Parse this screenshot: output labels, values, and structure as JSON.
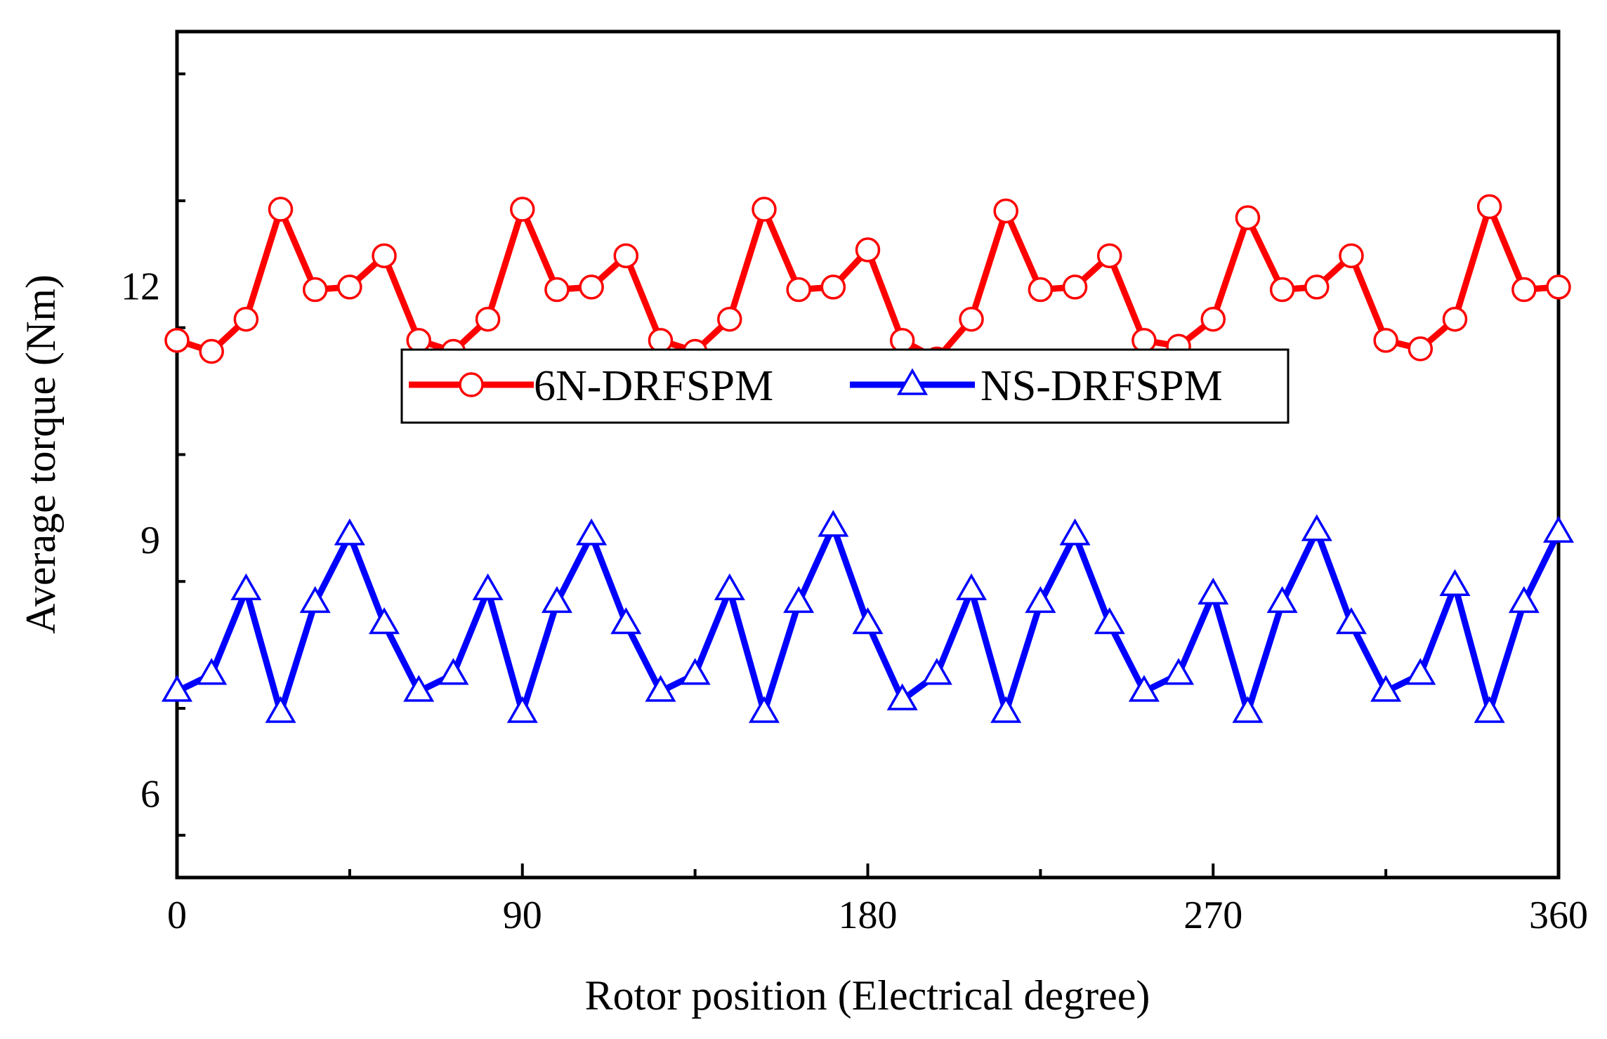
{
  "chart_data": {
    "type": "line",
    "title": "",
    "xlabel": "Rotor position (Electrical degree)",
    "ylabel": "Average torque (Nm)",
    "xlim": [
      0,
      360
    ],
    "ylim": [
      5,
      15
    ],
    "xticks": [
      0,
      90,
      180,
      270,
      360
    ],
    "yticks": [
      6,
      9,
      12
    ],
    "xtick_labels": [
      "0",
      "90",
      "180",
      "270",
      "360"
    ],
    "ytick_labels": [
      "6",
      "9",
      "12"
    ],
    "grid": false,
    "legend_position": "center",
    "x": [
      0,
      9,
      18,
      27,
      36,
      45,
      54,
      63,
      72,
      81,
      90,
      99,
      108,
      117,
      126,
      135,
      144,
      153,
      162,
      171,
      180,
      189,
      198,
      207,
      216,
      225,
      234,
      243,
      252,
      261,
      270,
      279,
      288,
      297,
      306,
      315,
      324,
      333,
      342,
      351,
      360
    ],
    "series": [
      {
        "name": "6N-DRFSPM",
        "color": "#ff0000",
        "marker": "circle",
        "values": [
          11.35,
          11.22,
          11.6,
          12.9,
          11.95,
          11.98,
          12.35,
          11.35,
          11.22,
          11.6,
          12.9,
          11.95,
          11.98,
          12.35,
          11.35,
          11.22,
          11.6,
          12.9,
          11.95,
          11.98,
          12.42,
          11.35,
          11.13,
          11.6,
          12.88,
          11.95,
          11.98,
          12.35,
          11.35,
          11.28,
          11.6,
          12.8,
          11.95,
          11.98,
          12.35,
          11.35,
          11.25,
          11.6,
          12.93,
          11.95,
          11.98
        ]
      },
      {
        "name": "NS-DRFSPM",
        "color": "#0000ff",
        "marker": "triangle",
        "values": [
          7.2,
          7.4,
          8.4,
          6.95,
          8.25,
          9.05,
          8.0,
          7.2,
          7.4,
          8.4,
          6.95,
          8.25,
          9.05,
          8.0,
          7.2,
          7.4,
          8.4,
          6.95,
          8.25,
          9.15,
          8.0,
          7.1,
          7.4,
          8.4,
          6.95,
          8.25,
          9.05,
          8.0,
          7.2,
          7.4,
          8.35,
          6.95,
          8.25,
          9.1,
          8.0,
          7.2,
          7.4,
          8.45,
          6.95,
          8.25,
          9.08
        ]
      }
    ]
  }
}
